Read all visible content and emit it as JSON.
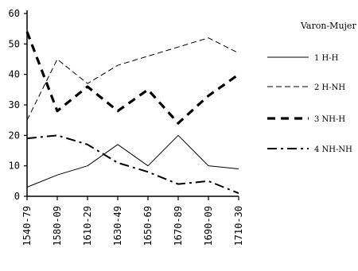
{
  "chart_data": {
    "type": "line",
    "title": "",
    "xlabel": "",
    "ylabel": "",
    "legend_title": "Varon-Mujer",
    "categories": [
      "1540-79",
      "1580-09",
      "1610-29",
      "1630-49",
      "1650-69",
      "1670-89",
      "1690-09",
      "1710-30"
    ],
    "ylim": [
      0,
      60
    ],
    "yticks": [
      0,
      10,
      20,
      30,
      40,
      50,
      60
    ],
    "grid": false,
    "legend_position": "right",
    "series": [
      {
        "name": "1 H-H",
        "values": [
          3,
          7,
          10,
          17,
          10,
          20,
          10,
          9
        ],
        "style": "solid",
        "width": 1
      },
      {
        "name": "2 H-NH",
        "values": [
          25,
          45,
          37,
          43,
          46,
          49,
          52,
          47
        ],
        "style": "dashed",
        "width": 1
      },
      {
        "name": "3 NH-H",
        "values": [
          54,
          28,
          36,
          28,
          35,
          24,
          33,
          40
        ],
        "style": "bolddash",
        "width": 3.2
      },
      {
        "name": "4 NH-NH",
        "values": [
          19,
          20,
          17,
          11,
          8,
          4,
          5,
          1
        ],
        "style": "dashdot",
        "width": 2
      }
    ]
  }
}
